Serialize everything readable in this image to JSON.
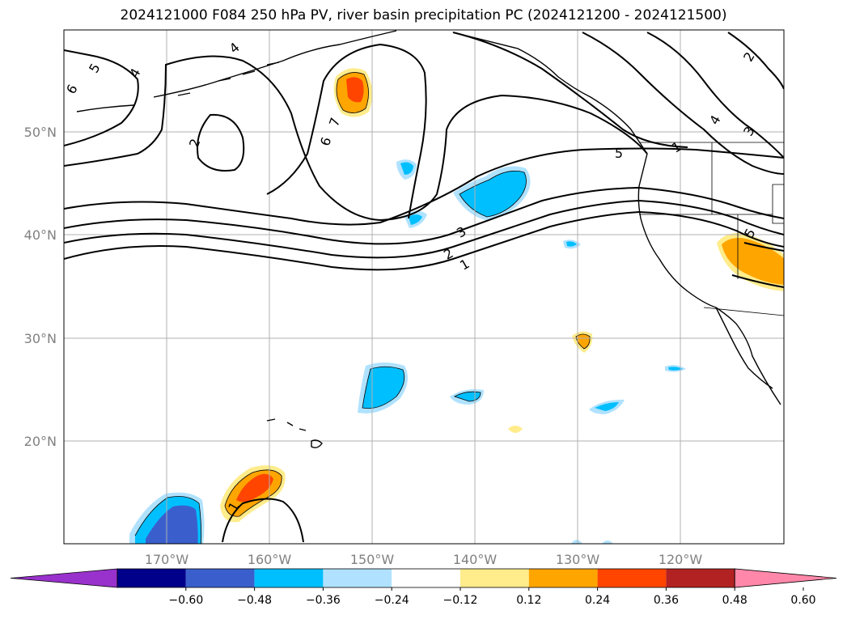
{
  "title": "2024121000 F084 250 hPa PV, river basin precipitation PC (2024121200 - 2024121500)",
  "axes": {
    "lat_ticks": [
      "50°N",
      "40°N",
      "30°N",
      "20°N"
    ],
    "lon_ticks": [
      "170°W",
      "160°W",
      "150°W",
      "140°W",
      "130°W",
      "120°W"
    ]
  },
  "pv_contour_labels": [
    "5",
    "4",
    "6",
    "4",
    "2",
    "7",
    "6",
    "5",
    "3",
    "2",
    "1",
    "4",
    "3",
    "2",
    "1",
    "5",
    "1"
  ],
  "colorbar": {
    "labels": [
      "−0.60",
      "−0.48",
      "−0.36",
      "−0.24",
      "−0.12",
      "0.12",
      "0.24",
      "0.36",
      "0.48",
      "0.60"
    ],
    "colors": [
      "#9932cc",
      "#00008b",
      "#3a5fcd",
      "#00bfff",
      "#b0e2ff",
      "#ffffff",
      "#ffec8b",
      "#ffa500",
      "#ff4500",
      "#b22222",
      "#ff88aa"
    ]
  },
  "colors": {
    "grid": "#b0b0b0",
    "contour": "#000000",
    "tick_text": "#808080"
  }
}
